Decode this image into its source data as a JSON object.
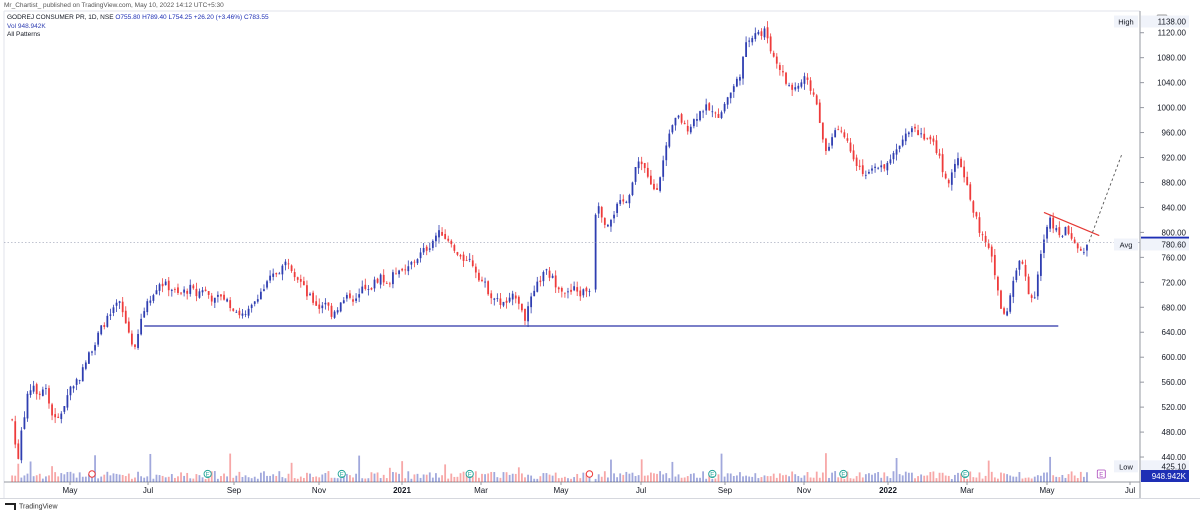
{
  "header": {
    "published": "Mr_Chartist_ published on TradingView.com, May 10, 2022 14:12 UTC+5:30"
  },
  "legend": {
    "symbol": "GODREJ CONSUMER PR, 1D, NSE",
    "ohlc": "O755.80 H789.40 L754.25 +26.20 (+3.46%)",
    "close_label": "C783.55",
    "vol": "Vol  948.942K",
    "indicator": "All Patterns"
  },
  "footer": {
    "brand": "TradingView"
  },
  "colors": {
    "up": "#2f3eb1",
    "down": "#ee3b3b",
    "support": "#2a33a8",
    "trend": "#e53935",
    "axis_text": "#131722",
    "grid": "#eef0f4"
  },
  "chart_data": {
    "type": "candlestick",
    "currency": "INR",
    "y_axis_unit_label": "INR",
    "ylim": [
      400,
      1150
    ],
    "y_ticks": [
      440,
      480,
      520,
      560,
      600,
      640,
      680,
      720,
      760,
      800,
      840,
      880,
      920,
      960,
      1000,
      1040,
      1080,
      1120
    ],
    "x_ticks": [
      "May",
      "Jul",
      "Sep",
      "Nov",
      "2021",
      "Mar",
      "May",
      "Jul",
      "Sep",
      "Nov",
      "2022",
      "Mar",
      "May",
      "Jul"
    ],
    "x_tick_bold": [
      "2021",
      "2022"
    ],
    "price_labels": [
      {
        "tag": "High",
        "value": 1138.0,
        "text": "1138.00"
      },
      {
        "tag": "",
        "value": 783.55,
        "text": "783.55",
        "current": true
      },
      {
        "tag": "Avg",
        "value": 780.6,
        "text": "780.60"
      },
      {
        "tag": "Low",
        "value": 425.1,
        "text": "425.10"
      }
    ],
    "volume_label": "948.942K",
    "price_path": [
      [
        0,
        570
      ],
      [
        3,
        540
      ],
      [
        6,
        500
      ],
      [
        9,
        460
      ],
      [
        12,
        440
      ],
      [
        15,
        480
      ],
      [
        20,
        530
      ],
      [
        26,
        560
      ],
      [
        32,
        540
      ],
      [
        38,
        560
      ],
      [
        44,
        510
      ],
      [
        50,
        495
      ],
      [
        56,
        520
      ],
      [
        62,
        550
      ],
      [
        68,
        560
      ],
      [
        74,
        575
      ],
      [
        80,
        600
      ],
      [
        88,
        630
      ],
      [
        96,
        655
      ],
      [
        104,
        670
      ],
      [
        110,
        690
      ],
      [
        116,
        660
      ],
      [
        122,
        630
      ],
      [
        126,
        610
      ],
      [
        132,
        660
      ],
      [
        138,
        690
      ],
      [
        144,
        705
      ],
      [
        150,
        720
      ],
      [
        156,
        715
      ],
      [
        162,
        710
      ],
      [
        168,
        700
      ],
      [
        174,
        705
      ],
      [
        180,
        710
      ],
      [
        186,
        700
      ],
      [
        192,
        710
      ],
      [
        198,
        700
      ],
      [
        204,
        690
      ],
      [
        210,
        700
      ],
      [
        216,
        690
      ],
      [
        222,
        680
      ],
      [
        228,
        670
      ],
      [
        234,
        665
      ],
      [
        240,
        680
      ],
      [
        246,
        700
      ],
      [
        252,
        710
      ],
      [
        258,
        725
      ],
      [
        264,
        735
      ],
      [
        270,
        745
      ],
      [
        276,
        755
      ],
      [
        282,
        735
      ],
      [
        288,
        720
      ],
      [
        294,
        700
      ],
      [
        300,
        690
      ],
      [
        306,
        680
      ],
      [
        312,
        690
      ],
      [
        318,
        670
      ],
      [
        324,
        680
      ],
      [
        330,
        690
      ],
      [
        336,
        700
      ],
      [
        342,
        690
      ],
      [
        348,
        710
      ],
      [
        354,
        705
      ],
      [
        360,
        720
      ],
      [
        366,
        730
      ],
      [
        372,
        715
      ],
      [
        378,
        730
      ],
      [
        384,
        745
      ],
      [
        390,
        735
      ],
      [
        396,
        750
      ],
      [
        402,
        760
      ],
      [
        408,
        770
      ],
      [
        414,
        780
      ],
      [
        420,
        795
      ],
      [
        426,
        800
      ],
      [
        432,
        785
      ],
      [
        438,
        770
      ],
      [
        444,
        755
      ],
      [
        450,
        760
      ],
      [
        456,
        750
      ],
      [
        462,
        730
      ],
      [
        468,
        715
      ],
      [
        474,
        700
      ],
      [
        480,
        690
      ],
      [
        486,
        685
      ],
      [
        492,
        690
      ],
      [
        498,
        700
      ],
      [
        504,
        680
      ],
      [
        508,
        660
      ],
      [
        512,
        690
      ],
      [
        516,
        700
      ],
      [
        520,
        720
      ],
      [
        524,
        730
      ],
      [
        528,
        735
      ],
      [
        532,
        730
      ],
      [
        536,
        720
      ],
      [
        540,
        715
      ],
      [
        544,
        710
      ],
      [
        548,
        700
      ],
      [
        552,
        705
      ],
      [
        556,
        710
      ],
      [
        560,
        700
      ],
      [
        564,
        705
      ],
      [
        568,
        710
      ],
      [
        572,
        705
      ],
      [
        574,
        780
      ],
      [
        577,
        860
      ],
      [
        580,
        840
      ],
      [
        584,
        820
      ],
      [
        588,
        815
      ],
      [
        592,
        825
      ],
      [
        596,
        840
      ],
      [
        600,
        845
      ],
      [
        604,
        850
      ],
      [
        608,
        860
      ],
      [
        612,
        880
      ],
      [
        616,
        905
      ],
      [
        620,
        920
      ],
      [
        624,
        900
      ],
      [
        628,
        880
      ],
      [
        632,
        870
      ],
      [
        636,
        875
      ],
      [
        640,
        900
      ],
      [
        646,
        940
      ],
      [
        652,
        975
      ],
      [
        658,
        985
      ],
      [
        664,
        965
      ],
      [
        670,
        975
      ],
      [
        676,
        990
      ],
      [
        682,
        1000
      ],
      [
        688,
        995
      ],
      [
        694,
        985
      ],
      [
        700,
        1000
      ],
      [
        706,
        1020
      ],
      [
        712,
        1035
      ],
      [
        718,
        1060
      ],
      [
        722,
        1095
      ],
      [
        726,
        1110
      ],
      [
        730,
        1120
      ],
      [
        734,
        1125
      ],
      [
        738,
        1115
      ],
      [
        742,
        1125
      ],
      [
        746,
        1100
      ],
      [
        750,
        1080
      ],
      [
        756,
        1065
      ],
      [
        762,
        1040
      ],
      [
        768,
        1030
      ],
      [
        774,
        1035
      ],
      [
        780,
        1045
      ],
      [
        786,
        1030
      ],
      [
        792,
        1010
      ],
      [
        796,
        960
      ],
      [
        800,
        935
      ],
      [
        806,
        945
      ],
      [
        812,
        975
      ],
      [
        818,
        955
      ],
      [
        824,
        940
      ],
      [
        830,
        915
      ],
      [
        836,
        900
      ],
      [
        842,
        890
      ],
      [
        848,
        900
      ],
      [
        854,
        910
      ],
      [
        860,
        905
      ],
      [
        866,
        920
      ],
      [
        872,
        940
      ],
      [
        876,
        955
      ],
      [
        880,
        965
      ],
      [
        886,
        970
      ],
      [
        892,
        960
      ],
      [
        898,
        955
      ],
      [
        904,
        945
      ],
      [
        910,
        930
      ],
      [
        914,
        905
      ],
      [
        918,
        890
      ],
      [
        922,
        880
      ],
      [
        926,
        900
      ],
      [
        930,
        915
      ],
      [
        934,
        905
      ],
      [
        938,
        880
      ],
      [
        942,
        855
      ],
      [
        946,
        830
      ],
      [
        950,
        810
      ],
      [
        954,
        790
      ],
      [
        958,
        780
      ],
      [
        962,
        765
      ],
      [
        966,
        730
      ],
      [
        970,
        700
      ],
      [
        973,
        670
      ],
      [
        976,
        665
      ],
      [
        980,
        690
      ],
      [
        984,
        720
      ],
      [
        988,
        745
      ],
      [
        992,
        755
      ],
      [
        996,
        730
      ],
      [
        1000,
        700
      ],
      [
        1004,
        690
      ],
      [
        1008,
        735
      ],
      [
        1012,
        775
      ],
      [
        1016,
        800
      ],
      [
        1020,
        820
      ],
      [
        1024,
        810
      ],
      [
        1028,
        805
      ],
      [
        1032,
        795
      ],
      [
        1036,
        805
      ],
      [
        1040,
        800
      ],
      [
        1044,
        785
      ],
      [
        1048,
        770
      ],
      [
        1052,
        760
      ],
      [
        1056,
        783
      ]
    ],
    "volume_spike_positions": [
      11,
      25,
      45,
      87,
      140,
      220,
      280,
      345,
      376,
      387,
      430,
      500,
      573,
      590,
      620,
      650,
      700,
      800,
      870,
      960,
      1019
    ],
    "event_markers": [
      {
        "x": 84,
        "kind": "circle",
        "color": "#ee3b3b"
      },
      {
        "x": 197,
        "kind": "letter",
        "letter": "E",
        "color": "#26a69a"
      },
      {
        "x": 328,
        "kind": "letter",
        "letter": "E",
        "color": "#26a69a"
      },
      {
        "x": 453,
        "kind": "letter",
        "letter": "E",
        "color": "#26a69a"
      },
      {
        "x": 570,
        "kind": "circle",
        "color": "#ee3b3b"
      },
      {
        "x": 690,
        "kind": "letter",
        "letter": "E",
        "color": "#26a69a"
      },
      {
        "x": 818,
        "kind": "letter",
        "letter": "E",
        "color": "#26a69a"
      },
      {
        "x": 937,
        "kind": "letter",
        "letter": "E",
        "color": "#26a69a"
      },
      {
        "x": 1070,
        "kind": "letter",
        "letter": "E",
        "color": "#ab47bc",
        "boxed": true
      }
    ],
    "support_line": {
      "x1": 135,
      "x2": 1028,
      "value": 650
    },
    "trend_line": {
      "x1": 1014,
      "y1_value": 832,
      "x2": 1068,
      "y2_value": 795
    },
    "projection_line": {
      "x1": 1058,
      "y1_value": 785,
      "x2": 1090,
      "y2_value": 925
    },
    "current_price_line": {
      "value": 783.55
    }
  }
}
